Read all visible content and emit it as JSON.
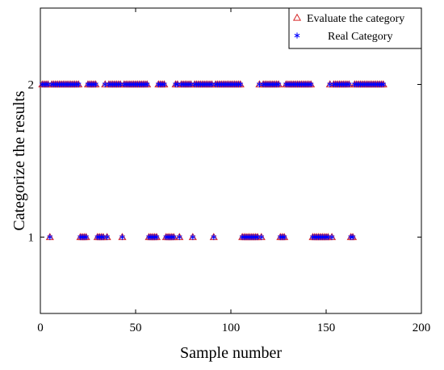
{
  "chart_data": {
    "type": "scatter",
    "title": "",
    "xlabel": "Sample number",
    "ylabel": "Categorize the results",
    "xlim": [
      0,
      200
    ],
    "ylim": [
      0.5,
      2.5
    ],
    "xticks": [
      0,
      50,
      100,
      150,
      200
    ],
    "yticks": [
      1,
      2
    ],
    "xtick_labels": [
      "0",
      "50",
      "100",
      "150",
      "200"
    ],
    "ytick_labels": [
      "1",
      "2"
    ],
    "grid": false,
    "legend_position": "top-right",
    "series": [
      {
        "name": "Evaluate the category",
        "marker": "triangle",
        "color": "#d62728",
        "category1_x": [
          5,
          21,
          22,
          23,
          24,
          30,
          31,
          32,
          33,
          35,
          43,
          57,
          58,
          59,
          60,
          61,
          66,
          67,
          68,
          69,
          70,
          73,
          80,
          91,
          106,
          107,
          108,
          109,
          110,
          111,
          112,
          113,
          114,
          116,
          126,
          127,
          128,
          143,
          144,
          145,
          146,
          147,
          148,
          149,
          150,
          151,
          153,
          163,
          164
        ]
      },
      {
        "name": "Real Category",
        "marker": "asterisk",
        "color": "#0000ff",
        "category1_x": [
          5,
          21,
          22,
          23,
          24,
          30,
          31,
          32,
          33,
          35,
          43,
          57,
          58,
          59,
          60,
          61,
          66,
          67,
          68,
          69,
          70,
          73,
          80,
          91,
          106,
          107,
          108,
          109,
          110,
          111,
          112,
          113,
          114,
          116,
          126,
          127,
          128,
          143,
          144,
          145,
          146,
          147,
          148,
          149,
          150,
          151,
          153,
          163,
          164
        ]
      }
    ],
    "n_samples": 180,
    "all_other_samples_category": 2
  }
}
